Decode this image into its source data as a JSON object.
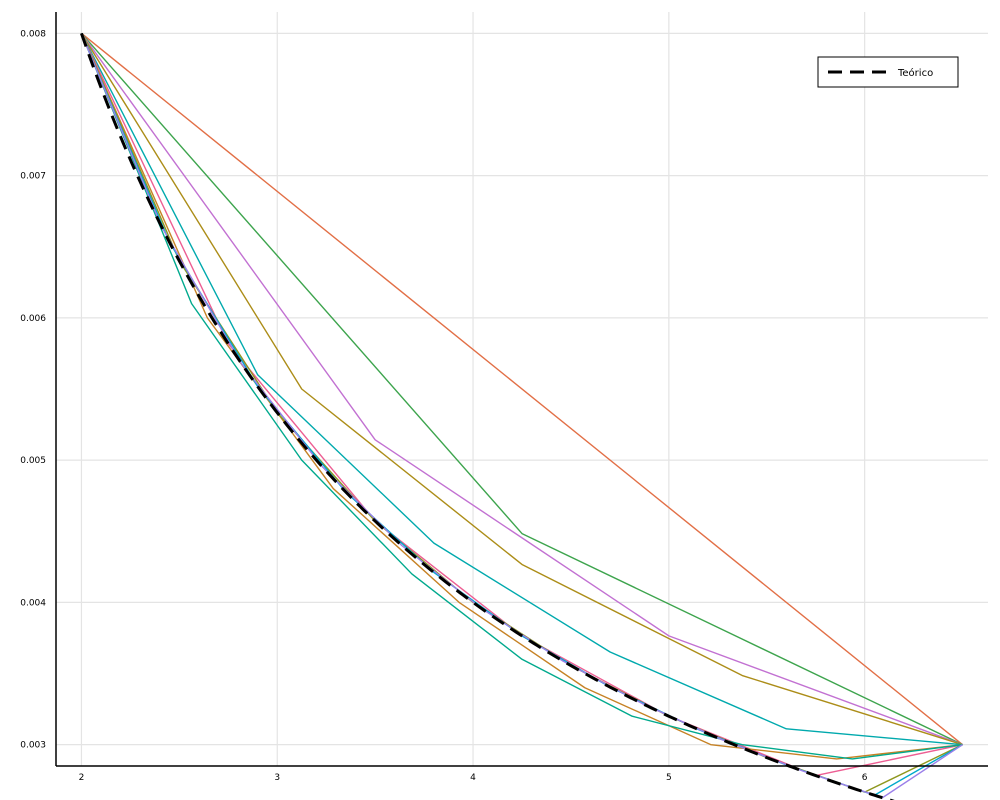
{
  "chart_data": {
    "type": "line",
    "title": "",
    "xlabel": "",
    "ylabel": "",
    "xlim": [
      1.87,
      6.63
    ],
    "ylim": [
      0.00285,
      0.00815
    ],
    "x_ticks": [
      2,
      3,
      4,
      5,
      6
    ],
    "y_ticks": [
      0.003,
      0.004,
      0.005,
      0.006,
      0.007,
      0.008
    ],
    "x_tick_labels": [
      "2",
      "3",
      "4",
      "5",
      "6"
    ],
    "y_tick_labels": [
      "0.003",
      "0.004",
      "0.005",
      "0.006",
      "0.007",
      "0.008"
    ],
    "grid": true,
    "legend": {
      "position": "top-right",
      "entries": [
        "Teórico"
      ]
    },
    "theory": {
      "name": "Teórico",
      "color": "#000000",
      "style": "dashed",
      "formula": "0.016 / x",
      "x_range": [
        2,
        6.5
      ]
    },
    "approximations": [
      {
        "color": "#e26f46",
        "x": [
          2,
          6.5
        ],
        "y": [
          0.008,
          0.003
        ]
      },
      {
        "color": "#3da44d",
        "x": [
          2,
          4.25,
          6.5
        ],
        "y": [
          0.008,
          0.0044838,
          0.003
        ]
      },
      {
        "color": "#c271d2",
        "x": [
          2,
          3.5,
          5,
          6.5
        ],
        "y": [
          0.008,
          0.0051429,
          0.0037647,
          0.003
        ]
      },
      {
        "color": "#ac8d18",
        "x": [
          2,
          3.125,
          4.25,
          5.375,
          6.5
        ],
        "y": [
          0.008,
          0.0055,
          0.0042667,
          0.0034857,
          0.003
        ]
      },
      {
        "color": "#00a9ad",
        "x": [
          2,
          2.9,
          3.8,
          4.7,
          5.6,
          6.5
        ],
        "y": [
          0.008,
          0.0056,
          0.0044167,
          0.0036512,
          0.0031111,
          0.003
        ]
      },
      {
        "color": "#ed5e93",
        "x": [
          2,
          2.75,
          3.5,
          4.25,
          5,
          5.75,
          6.5
        ],
        "y": [
          0.008,
          0.0058182,
          0.0045714,
          0.0037647,
          0.0032,
          0.0027826,
          0.003
        ]
      },
      {
        "color": "#c68225",
        "x": [
          2,
          2.643,
          3.286,
          3.929,
          4.571,
          5.214,
          5.857,
          6.5
        ],
        "y": [
          0.008,
          0.006,
          0.0048,
          0.004,
          0.0034,
          0.003,
          0.0029,
          0.003
        ]
      },
      {
        "color": "#00a98d",
        "x": [
          2,
          2.5625,
          3.125,
          3.6875,
          4.25,
          4.8125,
          5.375,
          5.9375,
          6.5
        ],
        "y": [
          0.008,
          0.0061,
          0.005,
          0.0042,
          0.0036,
          0.0032,
          0.003,
          0.0029,
          0.003
        ]
      },
      {
        "color": "#8e971e",
        "x": [
          2,
          2.5,
          3,
          3.5,
          4,
          4.5,
          5,
          5.5,
          6,
          6.5
        ],
        "y": [
          0.008,
          0.0064,
          0.0053333,
          0.0045714,
          0.004,
          0.0035556,
          0.0032,
          0.0029091,
          0.0026667,
          0.003
        ]
      },
      {
        "color": "#00a8cb",
        "x": [
          2,
          2.45,
          2.9,
          3.35,
          3.8,
          4.25,
          4.7,
          5.15,
          5.6,
          6.05,
          6.5
        ],
        "y": [
          0.008,
          0.0065306,
          0.0055172,
          0.0047761,
          0.0042105,
          0.0037647,
          0.0034043,
          0.0031068,
          0.0028571,
          0.0026446,
          0.003
        ]
      },
      {
        "color": "#9b7fe9",
        "x": [
          2,
          2.409,
          2.818,
          3.227,
          3.636,
          4.045,
          4.455,
          4.864,
          5.273,
          5.682,
          6.091,
          6.5
        ],
        "y": [
          0.008,
          0.006641,
          0.005677,
          0.004958,
          0.0044,
          0.003955,
          0.003591,
          0.003289,
          0.003034,
          0.002816,
          0.002627,
          0.003
        ]
      }
    ]
  }
}
